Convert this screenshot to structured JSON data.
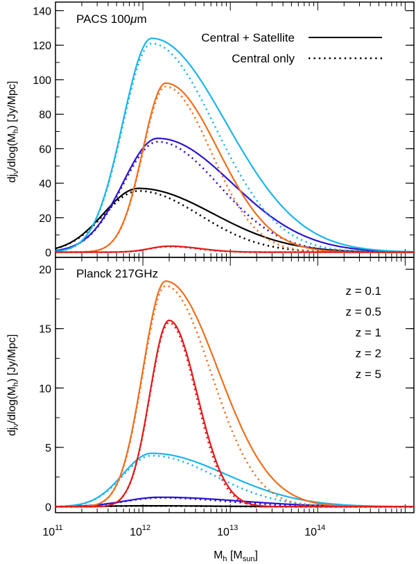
{
  "colors": {
    "z0.1": "#000000",
    "z0.5": "#2a12d4",
    "z1": "#1ab4ec",
    "z2": "#f06d1a",
    "z5": "#e41818"
  },
  "xaxis": {
    "label": "M",
    "label_sub": "h",
    "label_units": " [M",
    "label_units_sub": "sun",
    "label_close": "]",
    "log_range": [
      11,
      15.1
    ],
    "ticks": [
      {
        "base": "10",
        "exp": "11",
        "logx": 11
      },
      {
        "base": "10",
        "exp": "12",
        "logx": 12
      },
      {
        "base": "10",
        "exp": "13",
        "logx": 13
      },
      {
        "base": "10",
        "exp": "14",
        "logx": 14
      }
    ]
  },
  "legend": {
    "solid_label": "Central + Satellite",
    "dotted_label": "Central only",
    "z_labels": [
      {
        "key": "z0.1",
        "text": "z = 0.1"
      },
      {
        "key": "z0.5",
        "text": "z = 0.5"
      },
      {
        "key": "z1",
        "text": "z = 1"
      },
      {
        "key": "z2",
        "text": "z = 2"
      },
      {
        "key": "z5",
        "text": "z = 5"
      }
    ]
  },
  "chart_data": [
    {
      "type": "line",
      "panel": "top",
      "title_prefix": "PACS 100",
      "title_mu": "μ",
      "title_suffix": "m",
      "ylabel_pre": "dj",
      "ylabel_sub": "ν",
      "ylabel_mid": "/dlog(M",
      "ylabel_sub2": "h",
      "ylabel_post": ") [Jy/Mpc]",
      "ylim": [
        -3,
        145
      ],
      "yticks": [
        0,
        20,
        40,
        60,
        80,
        100,
        120,
        140
      ],
      "series": [
        {
          "key": "z0.1",
          "name": "z = 0.1",
          "style": "solid",
          "peak": 37,
          "logM_peak": 11.95,
          "width_left": 0.4,
          "width_right": 0.85
        },
        {
          "key": "z0.1",
          "name": "z = 0.1",
          "style": "dotted",
          "peak": 35.5,
          "logM_peak": 11.95,
          "width_left": 0.4,
          "width_right": 0.7
        },
        {
          "key": "z0.5",
          "name": "z = 0.5",
          "style": "solid",
          "peak": 66,
          "logM_peak": 12.17,
          "width_left": 0.4,
          "width_right": 0.85
        },
        {
          "key": "z0.5",
          "name": "z = 0.5",
          "style": "dotted",
          "peak": 64,
          "logM_peak": 12.17,
          "width_left": 0.4,
          "width_right": 0.7
        },
        {
          "key": "z1",
          "name": "z = 1",
          "style": "solid",
          "peak": 124,
          "logM_peak": 12.1,
          "width_left": 0.33,
          "width_right": 0.85
        },
        {
          "key": "z1",
          "name": "z = 1",
          "style": "dotted",
          "peak": 121,
          "logM_peak": 12.1,
          "width_left": 0.33,
          "width_right": 0.72
        },
        {
          "key": "z2",
          "name": "z = 2",
          "style": "solid",
          "peak": 98,
          "logM_peak": 12.26,
          "width_left": 0.26,
          "width_right": 0.6
        },
        {
          "key": "z2",
          "name": "z = 2",
          "style": "dotted",
          "peak": 96,
          "logM_peak": 12.26,
          "width_left": 0.26,
          "width_right": 0.52
        },
        {
          "key": "z5",
          "name": "z = 5",
          "style": "solid",
          "peak": 3.5,
          "logM_peak": 12.3,
          "width_left": 0.22,
          "width_right": 0.35
        },
        {
          "key": "z5",
          "name": "z = 5",
          "style": "dotted",
          "peak": 3.3,
          "logM_peak": 12.3,
          "width_left": 0.22,
          "width_right": 0.33
        }
      ]
    },
    {
      "type": "line",
      "panel": "bottom",
      "title": "Planck 217GHz",
      "ylabel_pre": "dj",
      "ylabel_sub": "ν",
      "ylabel_mid": "/dlog(M",
      "ylabel_sub2": "h",
      "ylabel_post": ") [Jy/Mpc]",
      "ylim": [
        -0.5,
        21
      ],
      "yticks": [
        0,
        5,
        10,
        15,
        20
      ],
      "series": [
        {
          "key": "z0.1",
          "name": "z = 0.1",
          "style": "solid",
          "peak": 0.08,
          "logM_peak": 12.0,
          "width_left": 0.4,
          "width_right": 0.85
        },
        {
          "key": "z0.1",
          "name": "z = 0.1",
          "style": "dotted",
          "peak": 0.07,
          "logM_peak": 12.0,
          "width_left": 0.4,
          "width_right": 0.75
        },
        {
          "key": "z0.5",
          "name": "z = 0.5",
          "style": "solid",
          "peak": 0.8,
          "logM_peak": 12.2,
          "width_left": 0.4,
          "width_right": 0.9
        },
        {
          "key": "z0.5",
          "name": "z = 0.5",
          "style": "dotted",
          "peak": 0.75,
          "logM_peak": 12.2,
          "width_left": 0.4,
          "width_right": 0.75
        },
        {
          "key": "z1",
          "name": "z = 1",
          "style": "solid",
          "peak": 4.5,
          "logM_peak": 12.1,
          "width_left": 0.33,
          "width_right": 0.85
        },
        {
          "key": "z1",
          "name": "z = 1",
          "style": "dotted",
          "peak": 4.3,
          "logM_peak": 12.1,
          "width_left": 0.33,
          "width_right": 0.72
        },
        {
          "key": "z2",
          "name": "z = 2",
          "style": "solid",
          "peak": 19.0,
          "logM_peak": 12.26,
          "width_left": 0.26,
          "width_right": 0.6
        },
        {
          "key": "z2",
          "name": "z = 2",
          "style": "dotted",
          "peak": 18.6,
          "logM_peak": 12.26,
          "width_left": 0.26,
          "width_right": 0.52
        },
        {
          "key": "z5",
          "name": "z = 5",
          "style": "solid",
          "peak": 15.7,
          "logM_peak": 12.3,
          "width_left": 0.22,
          "width_right": 0.32
        },
        {
          "key": "z5",
          "name": "z = 5",
          "style": "dotted",
          "peak": 15.5,
          "logM_peak": 12.3,
          "width_left": 0.22,
          "width_right": 0.31
        }
      ]
    }
  ]
}
